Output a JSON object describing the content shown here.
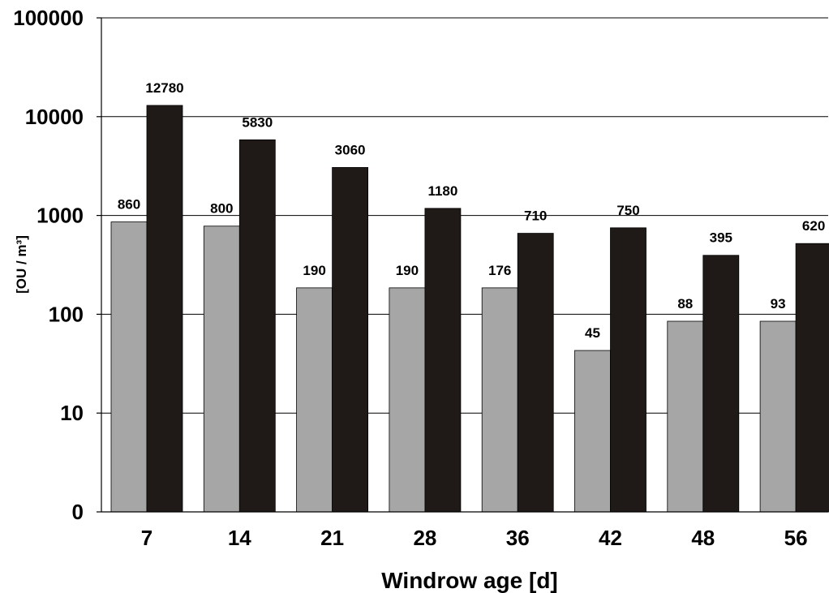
{
  "chart_data": {
    "type": "bar",
    "title": "",
    "xlabel": "Windrow age [d]",
    "ylabel": "[OU / m³]",
    "y_scale": "log",
    "ylim": [
      1,
      100000
    ],
    "yticks": [
      1,
      10,
      100,
      1000,
      10000,
      100000
    ],
    "ytick_labels": [
      "0",
      "10",
      "100",
      "1000",
      "10000",
      "100000"
    ],
    "categories": [
      "7",
      "14",
      "21",
      "28",
      "36",
      "42",
      "48",
      "56"
    ],
    "grid": "horizontal",
    "legend": "none",
    "series": [
      {
        "color": "#a6a6a6",
        "values": [
          860,
          800,
          190,
          190,
          176,
          45,
          88,
          93
        ],
        "labels": [
          "860",
          "800",
          "190",
          "190",
          "176",
          "45",
          "88",
          "93"
        ],
        "drawn_values": [
          860,
          780,
          185,
          185,
          185,
          43,
          85,
          85
        ]
      },
      {
        "color": "#1f1a17",
        "values": [
          12780,
          5830,
          3060,
          1180,
          710,
          750,
          395,
          620
        ],
        "labels": [
          "12780",
          "5830",
          "3060",
          "1180",
          "710",
          "750",
          "395",
          "620"
        ],
        "drawn_values": [
          13000,
          5830,
          3060,
          1180,
          660,
          750,
          395,
          520
        ]
      }
    ]
  }
}
